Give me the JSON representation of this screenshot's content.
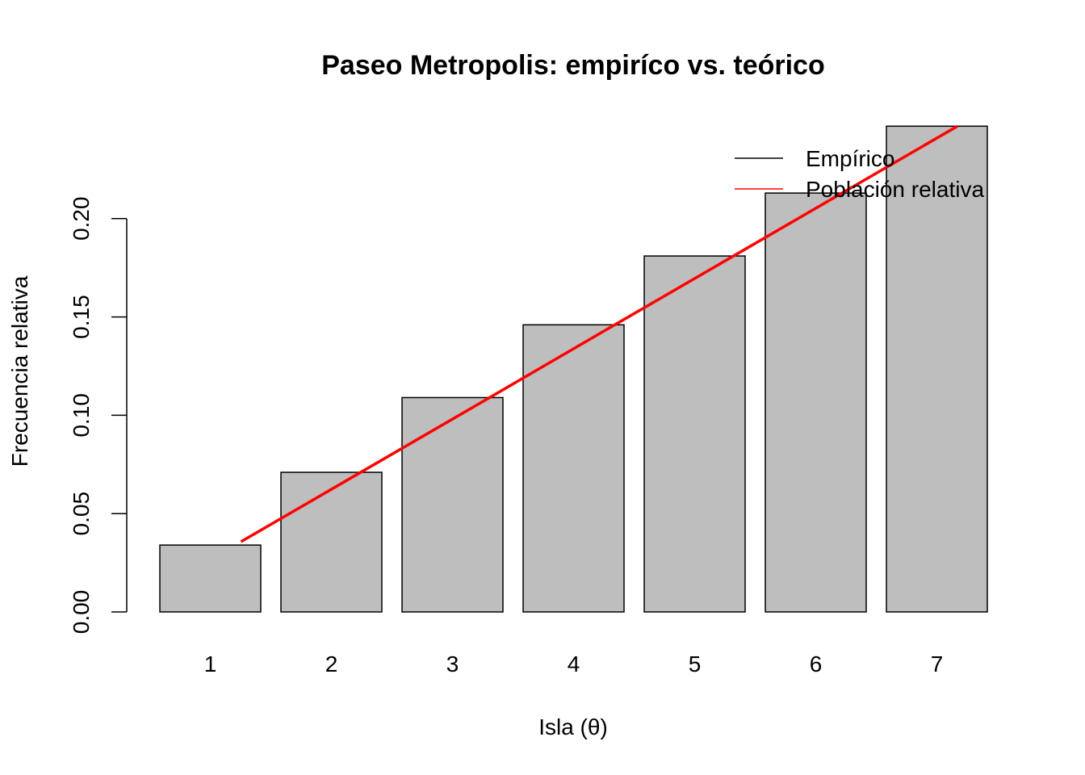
{
  "chart_data": {
    "type": "bar",
    "title": "Paseo Metropolis: empiríco vs. teórico",
    "xlabel": "Isla (θ)",
    "ylabel": "Frecuencia relativa",
    "categories": [
      "1",
      "2",
      "3",
      "4",
      "5",
      "6",
      "7"
    ],
    "series": [
      {
        "name": "Empírico",
        "type": "bar",
        "values": [
          0.034,
          0.071,
          0.109,
          0.146,
          0.181,
          0.213,
          0.247
        ]
      },
      {
        "name": "Población relativa",
        "type": "line",
        "values": [
          0.0357,
          0.0714,
          0.1071,
          0.1429,
          0.1786,
          0.2143,
          0.25
        ]
      }
    ],
    "yticks": [
      0.0,
      0.05,
      0.1,
      0.15,
      0.2
    ],
    "ytick_labels": [
      "0.00",
      "0.05",
      "0.10",
      "0.15",
      "0.20"
    ],
    "ylim": [
      0,
      0.247
    ],
    "legend": {
      "placement": "top-right",
      "entries": [
        {
          "label": "Empírico",
          "color": "#000000"
        },
        {
          "label": "Población relativa",
          "color": "#ff0000"
        }
      ]
    },
    "colors": {
      "bar_fill": "#bebebe",
      "bar_stroke": "#000000",
      "line": "#ff0000"
    },
    "grid": false
  }
}
